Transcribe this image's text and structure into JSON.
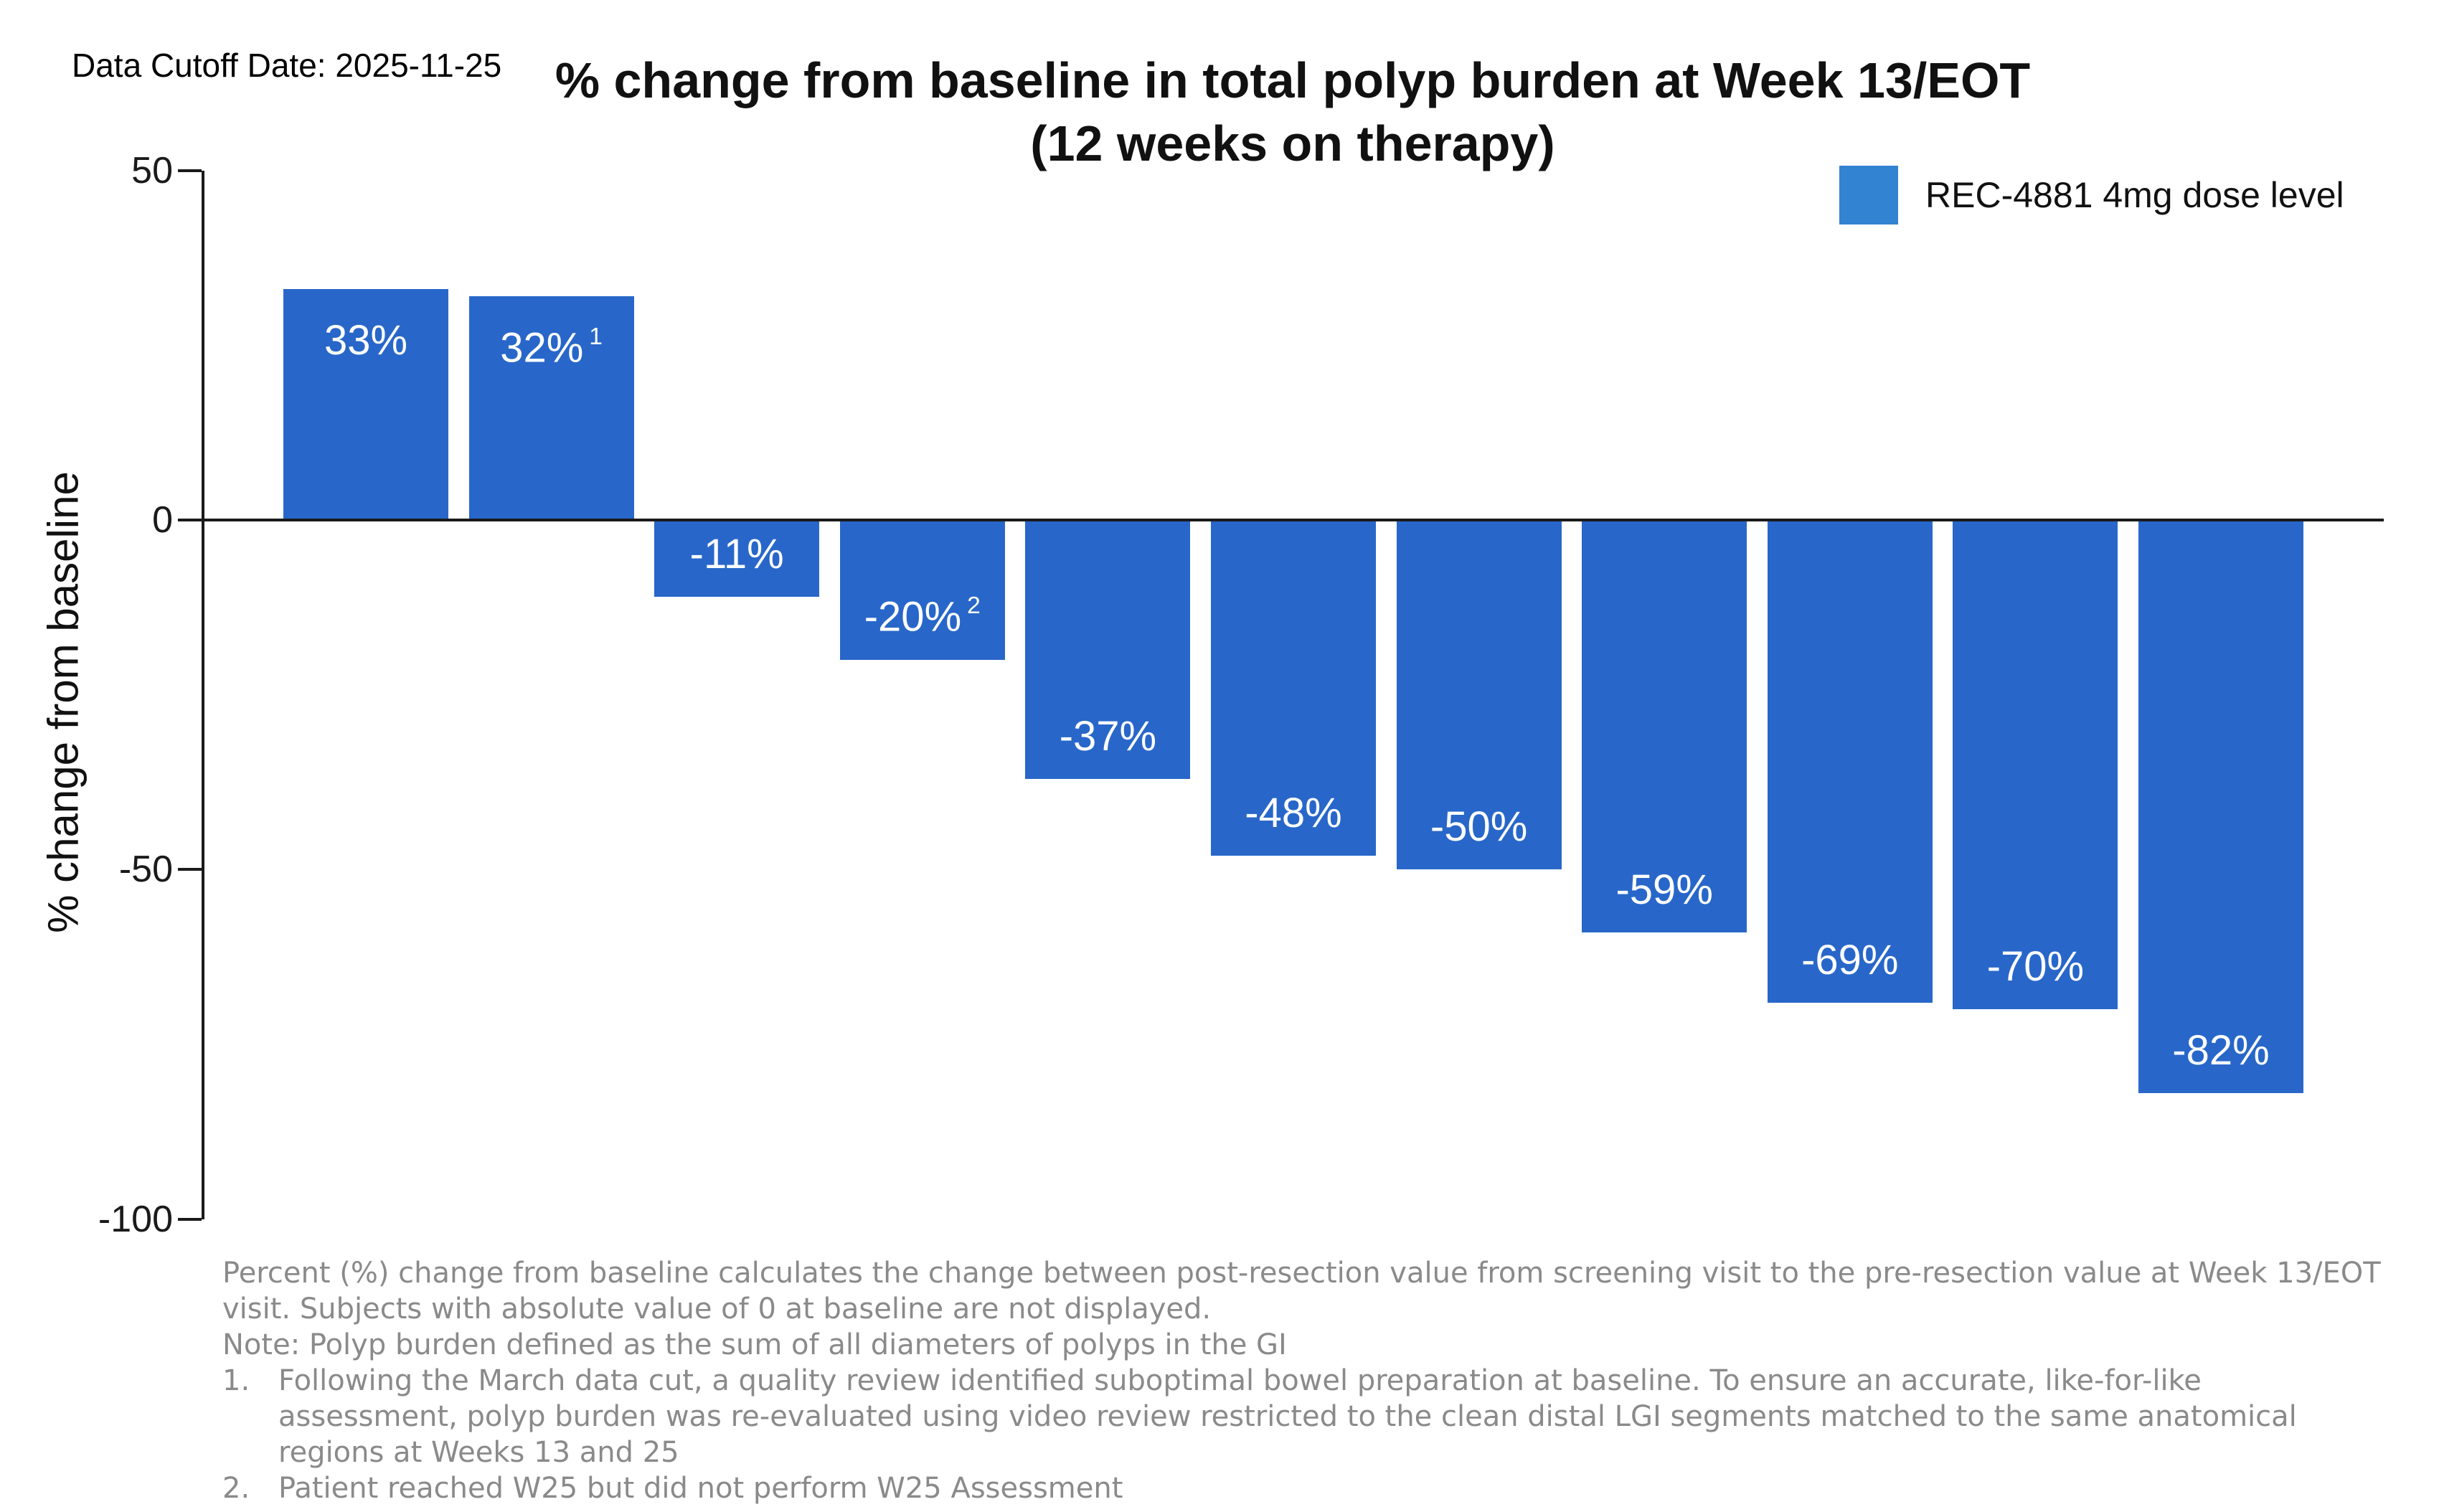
{
  "header": {
    "data_cutoff": "Data Cutoff Date: 2025-11-25",
    "title_line1": "% change from baseline in total polyp burden at Week 13/EOT",
    "title_line2": "(12 weeks on therapy)"
  },
  "legend": {
    "label": "REC-4881 4mg dose level"
  },
  "y_axis": {
    "label": "% change from baseline"
  },
  "colors": {
    "bar": "#2867C9",
    "legend_swatch": "#3283D2",
    "axis": "#1a1a1a",
    "bar_label_text": "#ffffff",
    "footnote_text": "#8a8a8a"
  },
  "chart_data": {
    "type": "bar",
    "title": "% change from baseline in total polyp burden at Week 13/EOT (12 weeks on therapy)",
    "xlabel": "",
    "ylabel": "% change from baseline",
    "ylim": [
      -100,
      50
    ],
    "yticks": [
      50,
      0,
      -50,
      -100
    ],
    "grid": false,
    "legend_position": "top-right",
    "x_tick_labels": [],
    "series": [
      {
        "name": "REC-4881 4mg dose level",
        "values": [
          33,
          32,
          -11,
          -20,
          -37,
          -48,
          -50,
          -59,
          -69,
          -70,
          -82
        ],
        "bar_labels": [
          "33%",
          "32%",
          "-11%",
          "-20%",
          "-37%",
          "-48%",
          "-50%",
          "-59%",
          "-69%",
          "-70%",
          "-82%"
        ],
        "bar_label_superscripts": [
          "",
          "1",
          "",
          "2",
          "",
          "",
          "",
          "",
          "",
          "",
          ""
        ]
      }
    ]
  },
  "footnotes": {
    "body1": "Percent (%) change from baseline calculates the change between post-resection value from screening visit to the pre-resection value at Week 13/EOT visit. Subjects with absolute value of 0 at baseline are not displayed.",
    "note": "Note: Polyp burden defined as the sum of all diameters of polyps in the GI",
    "items": [
      {
        "num": "1.",
        "text": "Following the March data cut, a quality review identified suboptimal bowel preparation at baseline. To ensure an accurate, like-for-like assessment, polyp burden was re-evaluated using video review restricted to the clean distal LGI segments matched to the same anatomical regions at Weeks 13 and 25"
      },
      {
        "num": "2.",
        "text": "Patient reached W25 but did not perform W25 Assessment"
      }
    ]
  }
}
